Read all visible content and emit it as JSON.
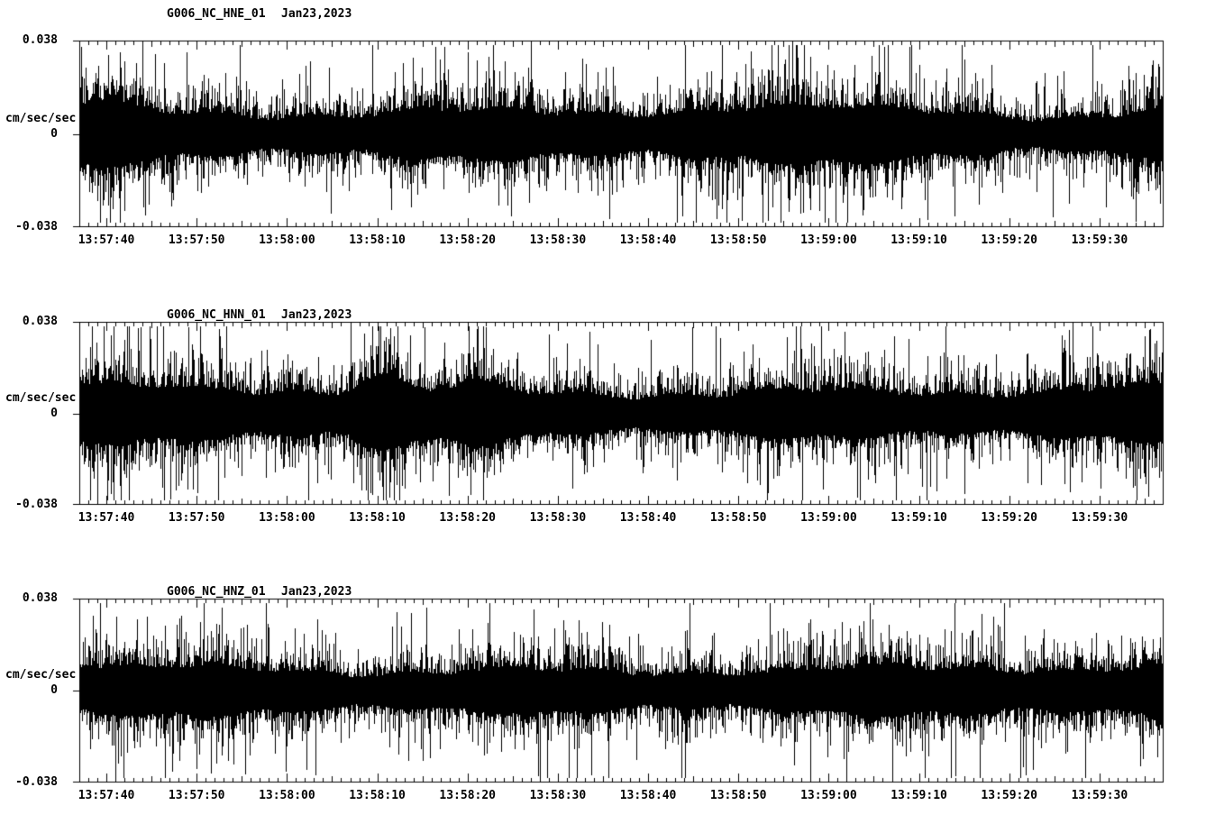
{
  "colors": {
    "background": "#ffffff",
    "trace": "#000000"
  },
  "chart_data": [
    {
      "type": "line",
      "subtype": "seismogram-waveform",
      "channel_label": "G006_NC_HNE_01",
      "date_label": "Jan23,2023",
      "ylabel": "cm/sec/sec",
      "ylim": [
        -0.038,
        0.038
      ],
      "yticks": [
        "0.038",
        "0",
        "-0.038"
      ],
      "x_window_s": 120,
      "x_minor_tick_s": 1,
      "x_major_tick_s": 10,
      "xticks": [
        "13:57:40",
        "13:57:50",
        "13:58:00",
        "13:58:10",
        "13:58:20",
        "13:58:30",
        "13:58:40",
        "13:58:50",
        "13:59:00",
        "13:59:10",
        "13:59:20",
        "13:59:30"
      ],
      "waveform": {
        "kind": "continuous-noise",
        "description": "dense ground-acceleration noise band around 0, typical extent about +/-0.015 of the +/-0.038 full scale, sporadic spikes reaching +/-0.037",
        "seed": 101,
        "band_amp": 0.0125,
        "spike_amp": 0.012,
        "spike_prob": 0.04,
        "events": [
          {
            "t": 1.5,
            "w": 2.5,
            "amp": 0.004
          },
          {
            "t": 110,
            "w": 6,
            "amp": -0.0045
          }
        ]
      }
    },
    {
      "type": "line",
      "subtype": "seismogram-waveform",
      "channel_label": "G006_NC_HNN_01",
      "date_label": "Jan23,2023",
      "ylabel": "cm/sec/sec",
      "ylim": [
        -0.038,
        0.038
      ],
      "yticks": [
        "0.038",
        "0",
        "-0.038"
      ],
      "x_window_s": 120,
      "x_minor_tick_s": 1,
      "x_major_tick_s": 10,
      "xticks": [
        "13:57:40",
        "13:57:50",
        "13:58:00",
        "13:58:10",
        "13:58:20",
        "13:58:30",
        "13:58:40",
        "13:58:50",
        "13:59:00",
        "13:59:10",
        "13:59:20",
        "13:59:30"
      ],
      "waveform": {
        "kind": "continuous-noise",
        "description": "dense ground-acceleration noise band around 0 with a stronger burst near 13:58:10-13:58:25, sporadic spikes reaching +/-0.036",
        "seed": 202,
        "band_amp": 0.0125,
        "spike_amp": 0.012,
        "spike_prob": 0.04,
        "events": [
          {
            "t": 33,
            "w": 2,
            "amp": 0.006
          },
          {
            "t": 44,
            "w": 2,
            "amp": 0.003
          }
        ]
      }
    },
    {
      "type": "line",
      "subtype": "seismogram-waveform",
      "channel_label": "G006_NC_HNZ_01",
      "date_label": "Jan23,2023",
      "ylabel": "cm/sec/sec",
      "ylim": [
        -0.038,
        0.038
      ],
      "yticks": [
        "0.038",
        "0",
        "-0.038"
      ],
      "x_window_s": 120,
      "x_minor_tick_s": 1,
      "x_major_tick_s": 10,
      "xticks": [
        "13:57:40",
        "13:57:50",
        "13:58:00",
        "13:58:10",
        "13:58:20",
        "13:58:30",
        "13:58:40",
        "13:58:50",
        "13:59:00",
        "13:59:10",
        "13:59:20",
        "13:59:30"
      ],
      "waveform": {
        "kind": "continuous-noise",
        "description": "fairly uniform dense ground-acceleration noise band around 0, typical extent about +/-0.014 of full scale, occasional spikes to +/-0.036",
        "seed": 303,
        "band_amp": 0.0115,
        "spike_amp": 0.011,
        "spike_prob": 0.04,
        "events": []
      }
    }
  ]
}
